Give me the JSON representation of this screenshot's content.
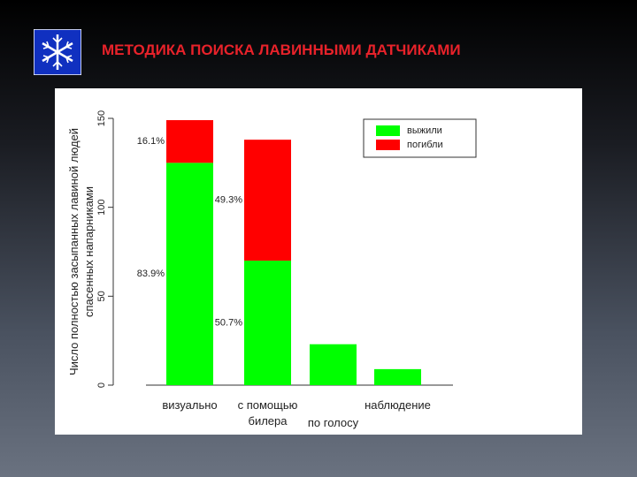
{
  "header": {
    "title": "МЕТОДИКА ПОИСКА ЛАВИННЫМИ ДАТЧИКАМИ"
  },
  "chart_data": {
    "type": "bar",
    "stacked": true,
    "ylabel": "Число полностью засыпанных лавиной людей спасенных напарниками",
    "categories": [
      "визуально",
      "с помощью билера",
      "по голосу",
      "наблюдение"
    ],
    "series": [
      {
        "name": "выжили",
        "color": "#00ff00",
        "values": [
          125,
          70,
          23,
          9
        ],
        "percent_labels": [
          "83.9%",
          "50.7%",
          null,
          null
        ]
      },
      {
        "name": "погибли",
        "color": "#ff0000",
        "values": [
          24,
          68,
          0,
          0
        ],
        "percent_labels": [
          "16.1%",
          "49.3%",
          null,
          null
        ]
      }
    ],
    "ylim": [
      0,
      150
    ],
    "yticks": [
      0,
      50,
      100,
      150
    ],
    "legend": "upper right"
  }
}
